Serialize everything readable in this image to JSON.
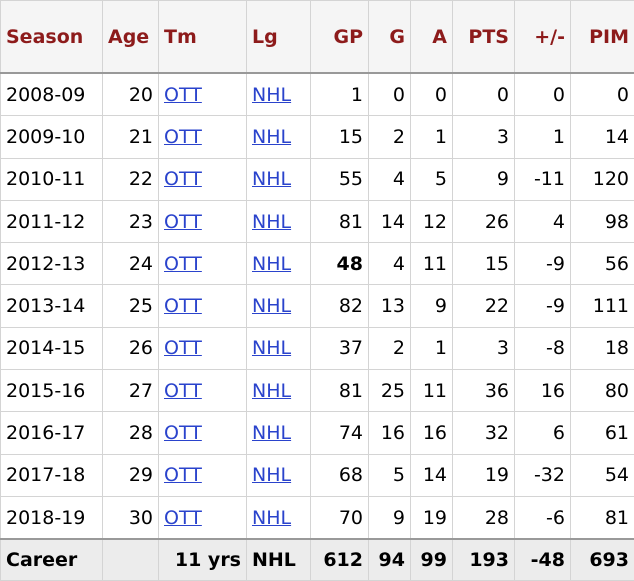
{
  "table": {
    "headers": [
      "Season",
      "Age",
      "Tm",
      "Lg",
      "GP",
      "G",
      "A",
      "PTS",
      "+/-",
      "PIM"
    ],
    "rows": [
      [
        "2008-09",
        20,
        "OTT",
        "NHL",
        1,
        0,
        0,
        0,
        0,
        0
      ],
      [
        "2009-10",
        21,
        "OTT",
        "NHL",
        15,
        2,
        1,
        3,
        1,
        14
      ],
      [
        "2010-11",
        22,
        "OTT",
        "NHL",
        55,
        4,
        5,
        9,
        -11,
        120
      ],
      [
        "2011-12",
        23,
        "OTT",
        "NHL",
        81,
        14,
        12,
        26,
        4,
        98
      ],
      [
        "2012-13",
        24,
        "OTT",
        "NHL",
        48,
        4,
        11,
        15,
        -9,
        56
      ],
      [
        "2013-14",
        25,
        "OTT",
        "NHL",
        82,
        13,
        9,
        22,
        -9,
        111
      ],
      [
        "2014-15",
        26,
        "OTT",
        "NHL",
        37,
        2,
        1,
        3,
        -8,
        18
      ],
      [
        "2015-16",
        27,
        "OTT",
        "NHL",
        81,
        25,
        11,
        36,
        16,
        80
      ],
      [
        "2016-17",
        28,
        "OTT",
        "NHL",
        74,
        16,
        16,
        32,
        6,
        61
      ],
      [
        "2017-18",
        29,
        "OTT",
        "NHL",
        68,
        5,
        14,
        19,
        -32,
        54
      ],
      [
        "2018-19",
        30,
        "OTT",
        "NHL",
        70,
        9,
        19,
        28,
        -6,
        81
      ]
    ],
    "footer": {
      "label": "Career",
      "years": "11 yrs",
      "league": "NHL",
      "stats": [
        612,
        94,
        99,
        193,
        -48,
        693
      ]
    }
  }
}
